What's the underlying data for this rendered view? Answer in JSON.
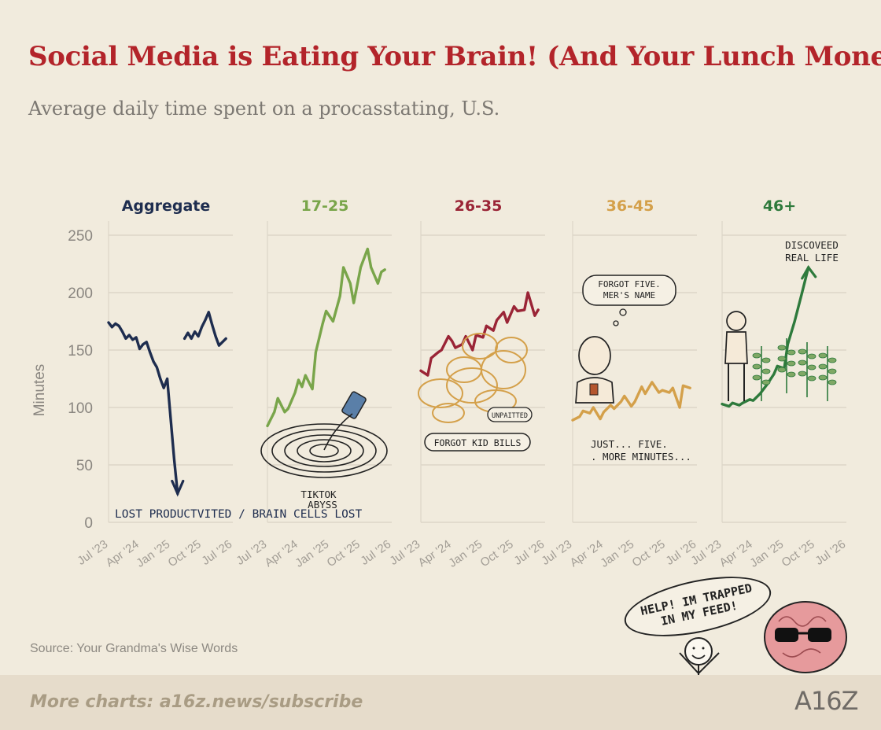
{
  "header": {
    "title": "Social Media is Eating Your Brain! (And Your Lunch Money)",
    "subtitle": "Average daily time spent on a procasstating,  U.S."
  },
  "footer": {
    "source": "Source: Your Grandma's Wise Words",
    "link": "More charts: a16z.news/subscribe",
    "logo": "A16Z"
  },
  "bubble": {
    "text": "HELP! IM TRAPPED IN MY  FEED!"
  },
  "chart_data": {
    "type": "line",
    "ylabel": "Minutes",
    "ylim": [
      0,
      250
    ],
    "yticks": [
      0,
      50,
      100,
      150,
      200,
      250
    ],
    "xticks": [
      "Jul '23",
      "Apr '24",
      "Jan '25",
      "Oct '25",
      "Jul '26"
    ],
    "grid": true,
    "panels": [
      {
        "name": "Aggregate",
        "color": "#1e2d4f",
        "x": [
          "2023-07",
          "2023-08",
          "2023-09",
          "2023-10",
          "2023-11",
          "2023-12",
          "2024-01",
          "2024-02",
          "2024-03",
          "2024-04",
          "2024-05",
          "2024-06",
          "2024-07",
          "2024-08",
          "2024-09",
          "2024-10",
          "2024-11",
          "2024-12",
          "2025-01",
          "2025-02",
          "2025-03"
        ],
        "values": [
          174,
          170,
          173,
          171,
          166,
          160,
          163,
          159,
          161,
          151,
          155,
          157,
          148,
          140,
          135,
          125,
          117,
          125,
          90,
          55,
          25
        ],
        "x2": [
          "2025-05",
          "2025-06",
          "2025-07",
          "2025-08",
          "2025-09",
          "2025-10",
          "2025-11",
          "2025-12",
          "2026-01",
          "2026-02",
          "2026-03",
          "2026-04",
          "2026-05"
        ],
        "values2": [
          160,
          165,
          160,
          166,
          162,
          170,
          176,
          183,
          172,
          162,
          154,
          157,
          160
        ],
        "annotation": "LOST PRODUCTVITED / BRAIN CELLS LOST"
      },
      {
        "name": "17-25",
        "color": "#79a54a",
        "x": [
          "2023-07",
          "2023-09",
          "2023-10",
          "2023-12",
          "2024-01",
          "2024-03",
          "2024-04",
          "2024-05",
          "2024-06",
          "2024-08",
          "2024-09",
          "2024-11",
          "2024-12",
          "2025-02",
          "2025-04",
          "2025-05",
          "2025-07",
          "2025-08",
          "2025-10",
          "2025-12",
          "2026-01",
          "2026-03",
          "2026-04",
          "2026-05"
        ],
        "values": [
          84,
          96,
          108,
          96,
          99,
          113,
          124,
          118,
          128,
          116,
          148,
          173,
          184,
          175,
          197,
          222,
          208,
          191,
          222,
          238,
          222,
          208,
          218,
          220
        ],
        "annotation": "TIKTOK ABYSS"
      },
      {
        "name": "26-35",
        "color": "#9a2436",
        "x": [
          "2023-07",
          "2023-09",
          "2023-10",
          "2023-12",
          "2024-01",
          "2024-03",
          "2024-04",
          "2024-05",
          "2024-07",
          "2024-08",
          "2024-10",
          "2024-11",
          "2025-01",
          "2025-02",
          "2025-04",
          "2025-05",
          "2025-07",
          "2025-08",
          "2025-10",
          "2025-11",
          "2026-01",
          "2026-02",
          "2026-04",
          "2026-05"
        ],
        "values": [
          132,
          128,
          143,
          148,
          150,
          162,
          158,
          152,
          155,
          162,
          150,
          163,
          161,
          171,
          167,
          176,
          183,
          174,
          188,
          184,
          185,
          200,
          180,
          185
        ],
        "annotation": "FORGOT KID BILLS",
        "annotation2": "UNPAITTED"
      },
      {
        "name": "36-45",
        "color": "#d4a04a",
        "x": [
          "2023-07",
          "2023-09",
          "2023-10",
          "2023-12",
          "2024-01",
          "2024-03",
          "2024-04",
          "2024-06",
          "2024-07",
          "2024-09",
          "2024-10",
          "2024-12",
          "2025-01",
          "2025-03",
          "2025-04",
          "2025-06",
          "2025-08",
          "2025-09",
          "2025-11",
          "2025-12",
          "2026-02",
          "2026-03",
          "2026-05"
        ],
        "values": [
          89,
          92,
          97,
          95,
          100,
          90,
          96,
          102,
          99,
          105,
          110,
          101,
          105,
          118,
          112,
          122,
          113,
          115,
          113,
          117,
          100,
          119,
          117
        ],
        "annotation": "JUST... FIVE... MORE MINUTES...",
        "bubble": "FORGOT FIVE. MER'S NAME"
      },
      {
        "name": "46+",
        "color": "#2e7a3c",
        "x": [
          "2023-07",
          "2023-09",
          "2023-10",
          "2023-12",
          "2024-01",
          "2024-03",
          "2024-04",
          "2024-06",
          "2024-08",
          "2024-10",
          "2024-11",
          "2025-01",
          "2025-02",
          "2025-04",
          "2025-06",
          "2025-08"
        ],
        "values": [
          103,
          101,
          104,
          102,
          104,
          107,
          106,
          112,
          120,
          129,
          136,
          134,
          155,
          175,
          198,
          222
        ],
        "annotation": "DISCOVEED REAL LIFE"
      }
    ]
  }
}
